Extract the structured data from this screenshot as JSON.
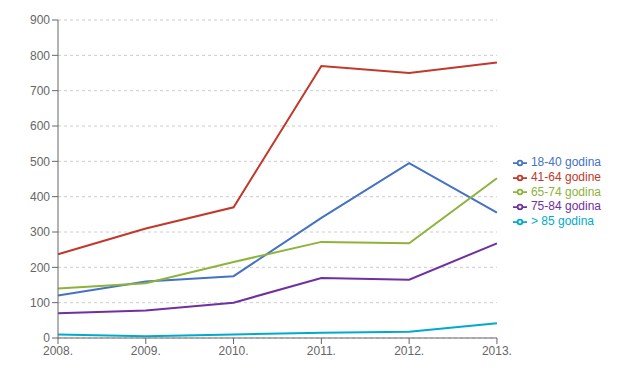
{
  "chart_data": {
    "type": "line",
    "categories": [
      "2008.",
      "2009.",
      "2010.",
      "2011.",
      "2012.",
      "2013."
    ],
    "series": [
      {
        "name": "18-40 godina",
        "color": "#4472C4",
        "values": [
          120,
          160,
          175,
          340,
          495,
          355
        ]
      },
      {
        "name": "41-64 godine",
        "color": "#C0392B",
        "values": [
          237,
          310,
          370,
          770,
          750,
          780
        ]
      },
      {
        "name": "65-74 godina",
        "color": "#8DB33A",
        "values": [
          140,
          155,
          215,
          272,
          268,
          452
        ]
      },
      {
        "name": "75-84 godina",
        "color": "#7030A0",
        "values": [
          70,
          78,
          100,
          170,
          165,
          268
        ]
      },
      {
        "name": "> 85 godina",
        "color": "#00AACC",
        "values": [
          10,
          5,
          10,
          15,
          18,
          42
        ]
      }
    ],
    "ylim": [
      0,
      900
    ],
    "yticks": [
      0,
      100,
      200,
      300,
      400,
      500,
      600,
      700,
      800,
      900
    ],
    "grid": true,
    "legend": "right"
  }
}
